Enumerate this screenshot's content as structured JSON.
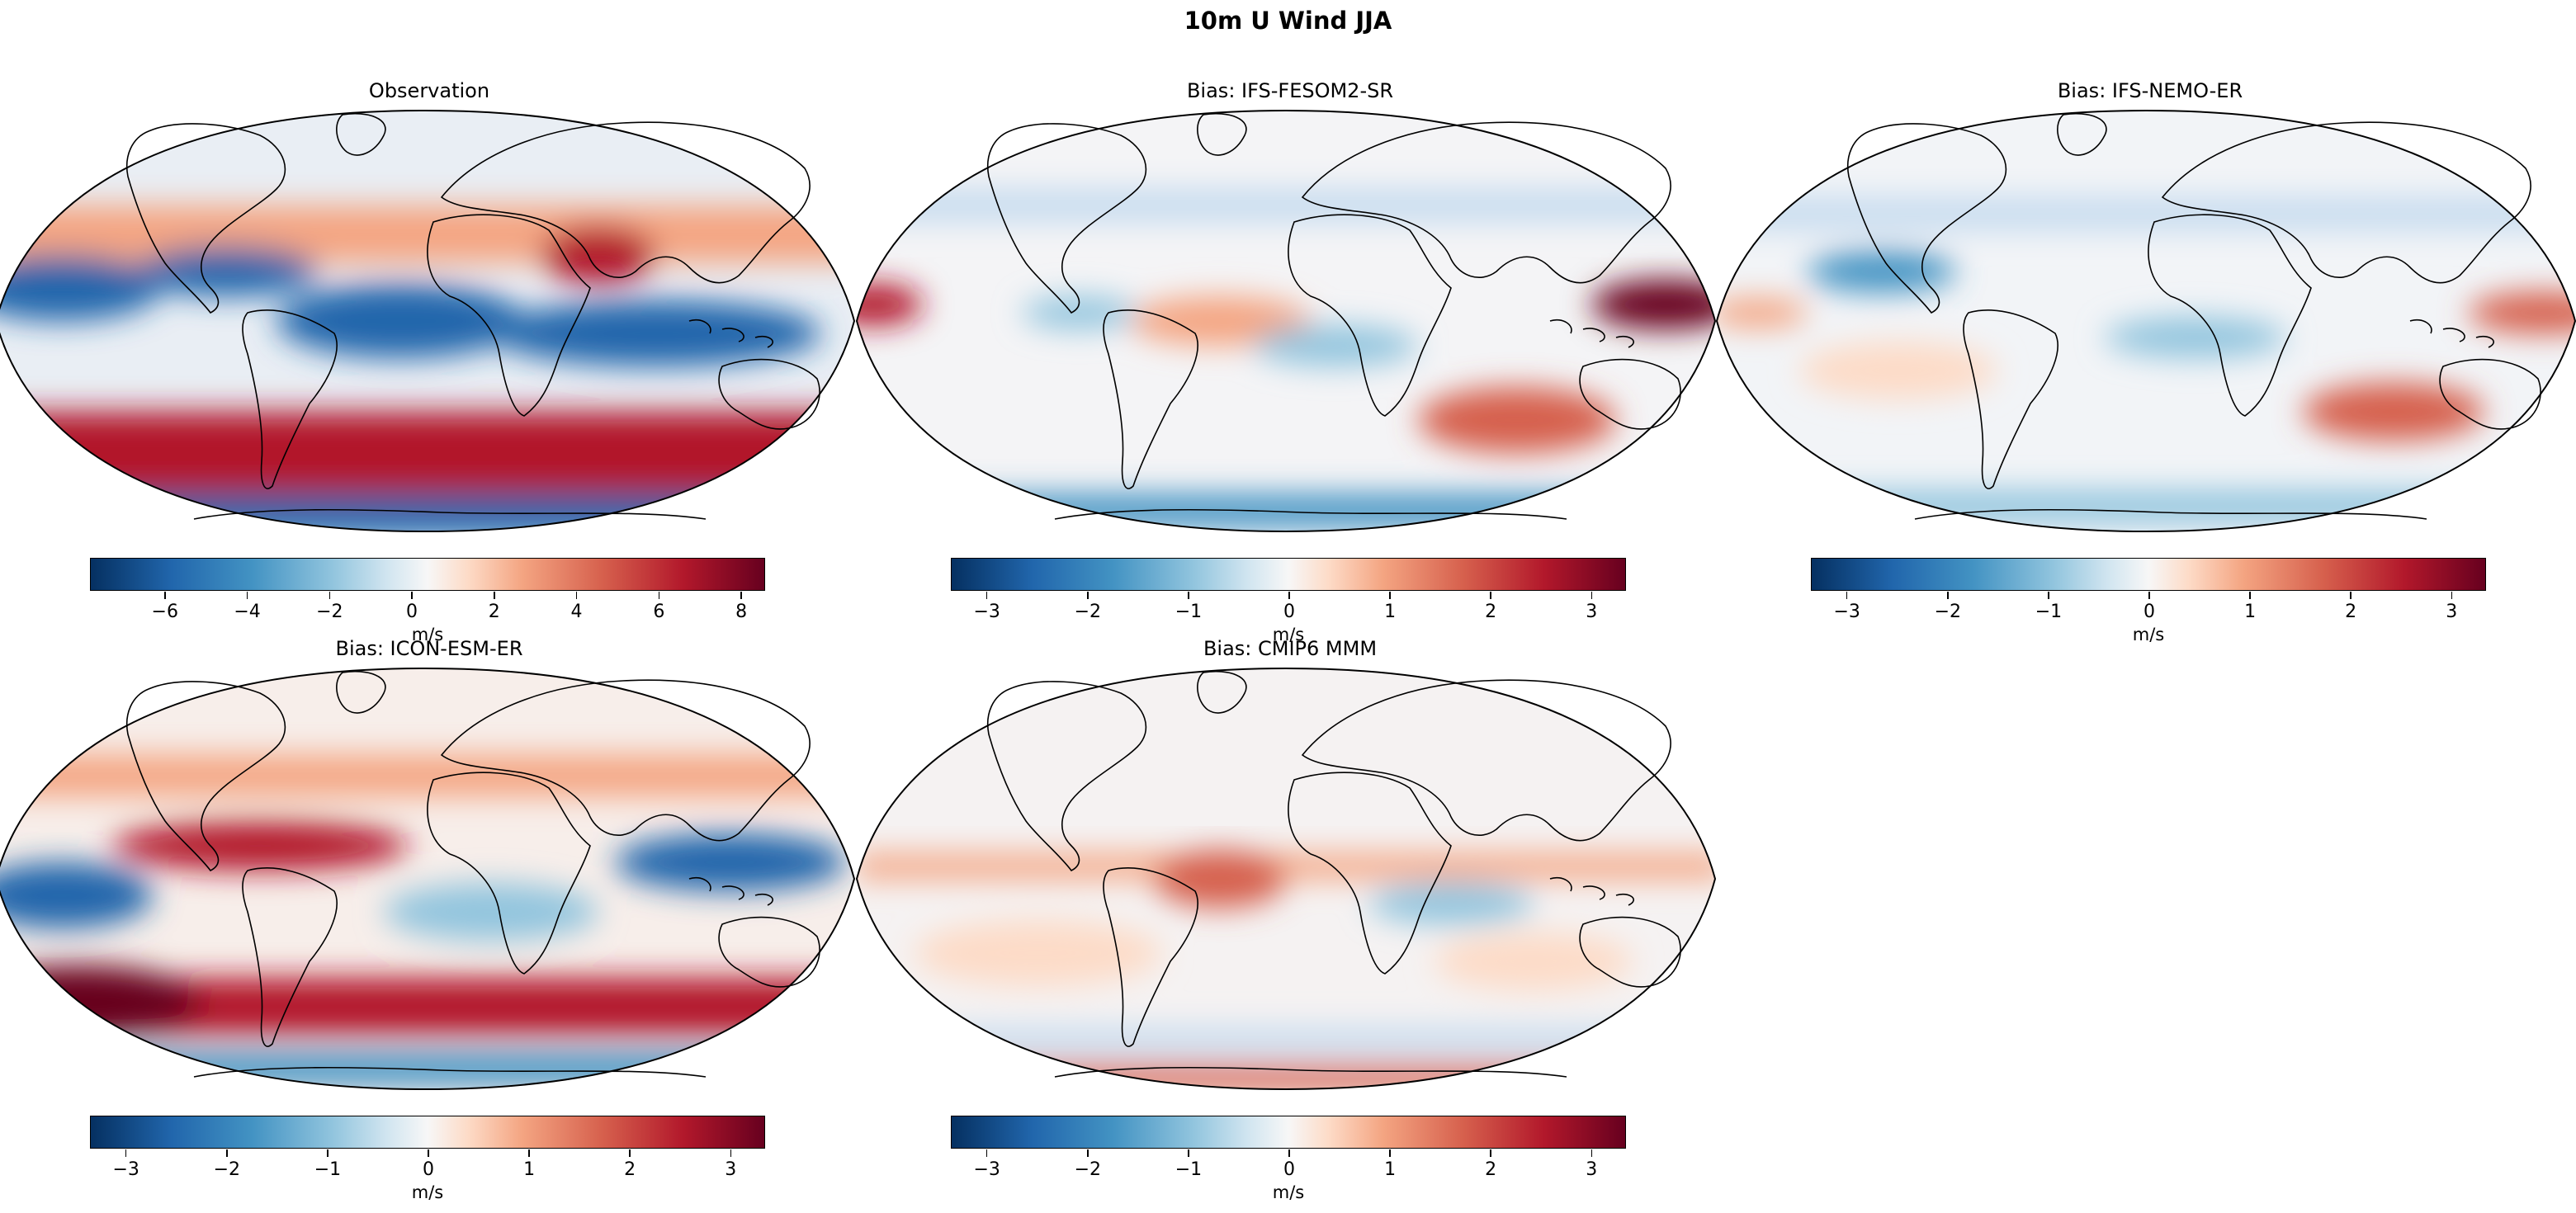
{
  "figure": {
    "title": "10m U Wind JJA"
  },
  "colormap": {
    "name": "RdBu_r",
    "low": "#053061",
    "mid": "#f7f7f7",
    "high": "#67001f"
  },
  "panels": [
    {
      "title": "Observation",
      "unit": "m/s",
      "vmin": -7.8,
      "vmax": 8.6,
      "ticks": [
        -6,
        -4,
        -2,
        0,
        2,
        4,
        6,
        8
      ],
      "tick_labels": [
        "−6",
        "−4",
        "−2",
        "0",
        "2",
        "4",
        "6",
        "8"
      ]
    },
    {
      "title": "Bias: IFS-FESOM2-SR",
      "unit": "m/s",
      "vmin": -3.35,
      "vmax": 3.35,
      "ticks": [
        -3,
        -2,
        -1,
        0,
        1,
        2,
        3
      ],
      "tick_labels": [
        "−3",
        "−2",
        "−1",
        "0",
        "1",
        "2",
        "3"
      ]
    },
    {
      "title": "Bias: IFS-NEMO-ER",
      "unit": "m/s",
      "vmin": -3.35,
      "vmax": 3.35,
      "ticks": [
        -3,
        -2,
        -1,
        0,
        1,
        2,
        3
      ],
      "tick_labels": [
        "−3",
        "−2",
        "−1",
        "0",
        "1",
        "2",
        "3"
      ]
    },
    {
      "title": "Bias: ICON-ESM-ER",
      "unit": "m/s",
      "vmin": -3.35,
      "vmax": 3.35,
      "ticks": [
        -3,
        -2,
        -1,
        0,
        1,
        2,
        3
      ],
      "tick_labels": [
        "−3",
        "−2",
        "−1",
        "0",
        "1",
        "2",
        "3"
      ]
    },
    {
      "title": "Bias: CMIP6 MMM",
      "unit": "m/s",
      "vmin": -3.35,
      "vmax": 3.35,
      "ticks": [
        -3,
        -2,
        -1,
        0,
        1,
        2,
        3
      ],
      "tick_labels": [
        "−3",
        "−2",
        "−1",
        "0",
        "1",
        "2",
        "3"
      ]
    }
  ]
}
